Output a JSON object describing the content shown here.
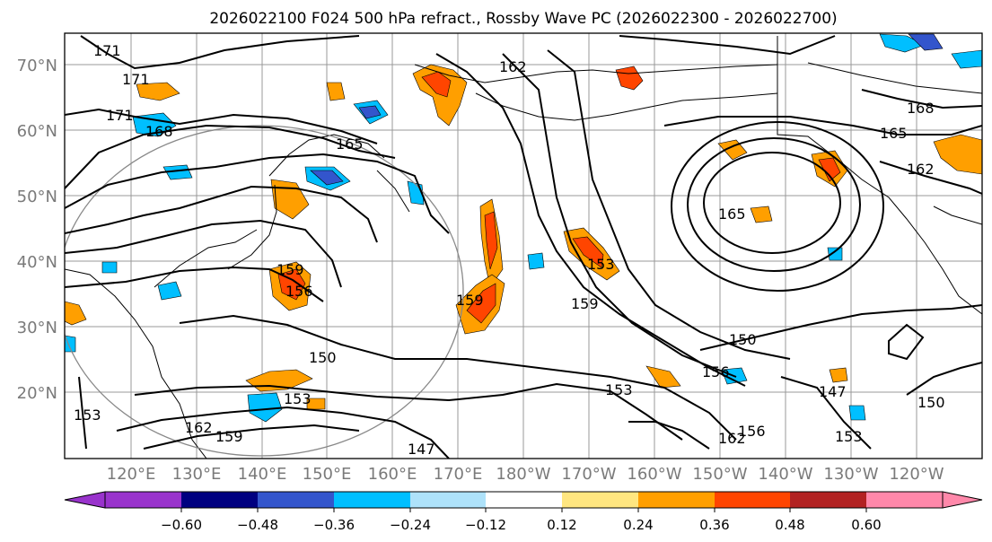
{
  "title": "2026022100 F024 500 hPa refract., Rossby Wave PC (2026022300 - 2026022700)",
  "map": {
    "lat_labels": [
      "70°N",
      "60°N",
      "50°N",
      "40°N",
      "30°N",
      "20°N"
    ],
    "lon_labels": [
      "120°E",
      "130°E",
      "140°E",
      "150°E",
      "160°E",
      "170°E",
      "180°W",
      "170°W",
      "160°W",
      "150°W",
      "140°W",
      "130°W",
      "120°W"
    ]
  },
  "contour_labels": [
    "171",
    "171",
    "171",
    "168",
    "165",
    "165",
    "168",
    "165",
    "162",
    "162",
    "159",
    "159",
    "159",
    "156",
    "156",
    "153",
    "153",
    "153",
    "150",
    "150",
    "150",
    "147",
    "162",
    "162",
    "159",
    "156",
    "153",
    "153",
    "147"
  ],
  "colorbar": {
    "colors": [
      "#9933cc",
      "#000080",
      "#3355cc",
      "#00bfff",
      "#aee2fa",
      "#ffffff",
      "#ffe680",
      "#ff9f00",
      "#ff4500",
      "#b22222",
      "#ff88aa"
    ],
    "tick_labels": [
      "−0.60",
      "−0.48",
      "−0.36",
      "−0.24",
      "−0.12",
      "0.12",
      "0.24",
      "0.36",
      "0.48",
      "0.60"
    ]
  },
  "colors": {
    "grid": "#999999",
    "contour": "#000000",
    "coast": "#000000",
    "circle": "#888888"
  }
}
